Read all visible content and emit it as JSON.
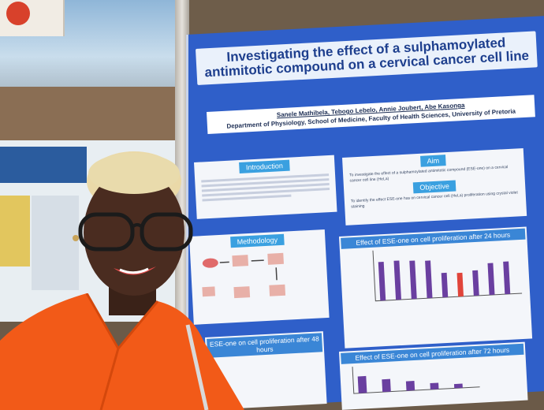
{
  "poster": {
    "title": "Investigating the effect of a sulphamoylated antimitotic compound on a cervical cancer cell line",
    "authors": "Sanele Mathibela, Tebogo Lebelo, Annie Joubert, Abe Kasonga",
    "affiliation": "Department of Physiology, School of Medicine, Faculty of Health Sciences, University of Pretoria",
    "sections": {
      "introduction": "Introduction",
      "aim": "Aim",
      "aim_text": "To investigate the effect of a sulphamoylated antimitotic compound (ESE-one) on a cervical cancer cell line (HeLa)",
      "objective": "Objective",
      "objective_text": "To identify the effect ESE-one has on cervical cancer cell (HeLa) proliferation using crystal violet staining",
      "methodology": "Methodology"
    },
    "charts": {
      "c24": "Effect of ESE-one on cell proliferation after 24 hours",
      "c48": "ESE-one on cell proliferation after 48 hours",
      "c72": "Effect of ESE-one on cell proliferation after 72 hours"
    }
  },
  "chart_data": [
    {
      "type": "bar",
      "title": "Effect of ESE-one on cell proliferation after 24 hours",
      "values": [
        95,
        96,
        94,
        92,
        60,
        58,
        62,
        78,
        80
      ],
      "ylim": [
        0,
        120
      ],
      "colors": [
        "#6a3fa0",
        "#6a3fa0",
        "#6a3fa0",
        "#6a3fa0",
        "#6a3fa0",
        "#e0443a",
        "#6a3fa0",
        "#6a3fa0",
        "#6a3fa0"
      ]
    },
    {
      "type": "bar",
      "title": "Effect of ESE-one on cell proliferation after 72 hours",
      "values": [
        80,
        60,
        45,
        30,
        20
      ],
      "ylim": [
        0,
        120
      ],
      "colors": [
        "#6a3fa0",
        "#6a3fa0",
        "#6a3fa0",
        "#6a3fa0",
        "#6a3fa0"
      ]
    }
  ],
  "colors": {
    "poster_blue": "#2f5fc9",
    "shirt_orange": "#f25a18",
    "title_navy": "#1e3f8e"
  }
}
